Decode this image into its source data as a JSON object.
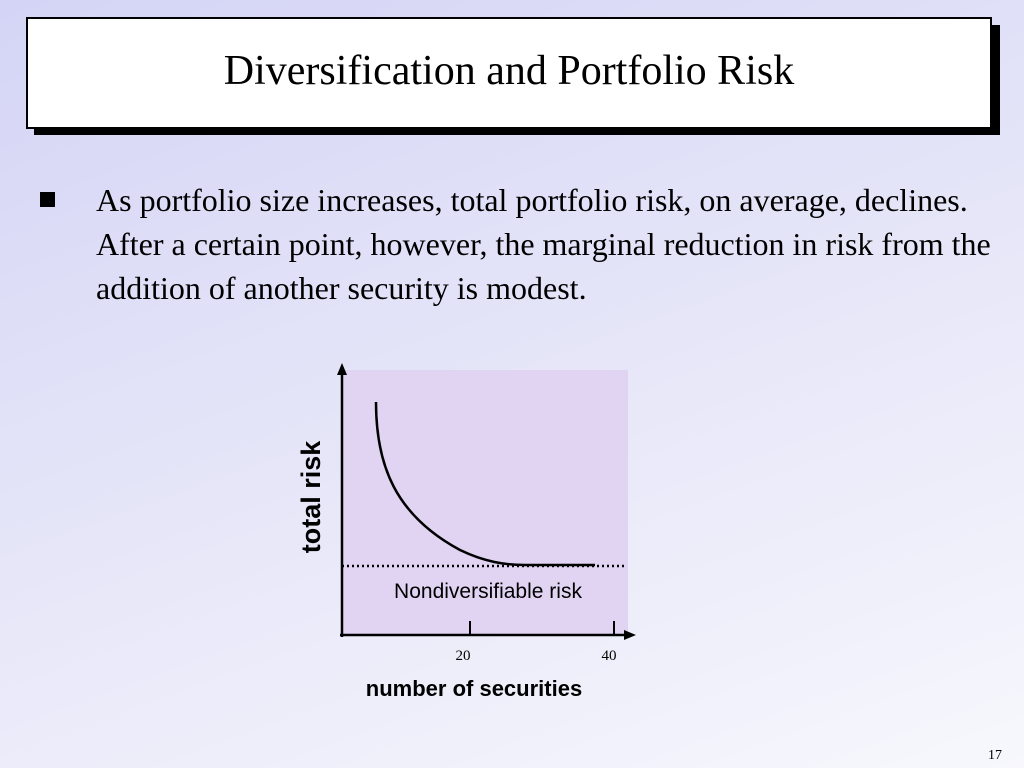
{
  "slide": {
    "title": "Diversification and Portfolio Risk",
    "bullet_text": "As portfolio size increases, total portfolio risk, on average, declines.  After a certain point, however, the marginal reduction in risk from the addition of another security is modest.",
    "page_number": "17"
  },
  "chart_data": {
    "type": "line",
    "xlabel": "number of securities",
    "ylabel": "total risk",
    "x_ticks": [
      20,
      40
    ],
    "annotation": "Nondiversifiable risk",
    "colors": {
      "plot_background": "#e0d4f2",
      "curve": "#000000"
    }
  }
}
